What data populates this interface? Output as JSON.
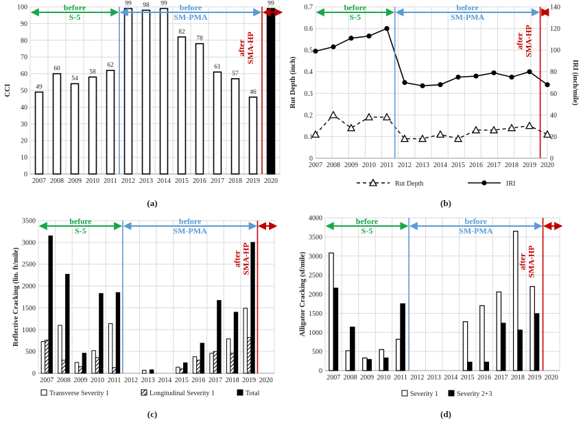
{
  "colors": {
    "green": "#1aa64a",
    "blue": "#5b9bd5",
    "red": "#c00000",
    "grid": "#d9d9d9",
    "black": "#000000"
  },
  "chart_data": [
    {
      "panel": "(a)",
      "type": "bar",
      "categories": [
        "2007",
        "2008",
        "2009",
        "2010",
        "2011",
        "2012",
        "2013",
        "2014",
        "2015",
        "2016",
        "2017",
        "2018",
        "2019",
        "2020"
      ],
      "values": [
        49,
        60,
        54,
        58,
        62,
        99,
        98,
        99,
        82,
        78,
        61,
        57,
        46,
        99
      ],
      "data_labels": [
        "49",
        "60",
        "54",
        "58",
        "62",
        "99",
        "98",
        "99",
        "82",
        "78",
        "61",
        "57",
        "46",
        "99"
      ],
      "fills": [
        "white",
        "white",
        "white",
        "white",
        "white",
        "white",
        "white",
        "white",
        "white",
        "white",
        "white",
        "white",
        "white",
        "black"
      ],
      "ylabel": "CCI",
      "ylim": [
        0,
        100
      ],
      "yticks": [
        "0",
        "10",
        "20",
        "30",
        "40",
        "50",
        "60",
        "70",
        "80",
        "90",
        "100"
      ],
      "annotations": [
        {
          "text1": "before",
          "text2": "S-5",
          "color": "green"
        },
        {
          "text1": "before",
          "text2": "SM-PMA",
          "color": "blue"
        },
        {
          "text1": "after",
          "text2": "SMA-HP",
          "color": "red"
        }
      ],
      "grid": true
    },
    {
      "panel": "(b)",
      "type": "line",
      "x": [
        "2007",
        "2008",
        "2009",
        "2010",
        "2011",
        "2012",
        "2013",
        "2014",
        "2015",
        "2016",
        "2017",
        "2018",
        "2019",
        "2020"
      ],
      "series": [
        {
          "name": "Rut Depth",
          "axis": "left",
          "style": "dashed-triangle",
          "values": [
            0.11,
            0.2,
            0.14,
            0.19,
            0.19,
            0.09,
            0.09,
            0.11,
            0.09,
            0.13,
            0.13,
            0.14,
            0.15,
            0.11
          ]
        },
        {
          "name": "IRI",
          "axis": "right",
          "style": "solid-circle",
          "values": [
            99,
            103,
            111,
            113,
            120,
            70,
            67,
            68,
            75,
            76,
            79,
            75,
            80,
            68
          ]
        }
      ],
      "ylabel": "Rut Depth (inch)",
      "ylim": [
        0,
        0.7
      ],
      "yticks": [
        "0",
        "0.1",
        "0.2",
        "0.3",
        "0.4",
        "0.5",
        "0.6",
        "0.7"
      ],
      "y2label": "IRI (inch/mile)",
      "y2lim": [
        0,
        140
      ],
      "y2ticks": [
        "0",
        "20",
        "40",
        "60",
        "80",
        "100",
        "120",
        "140"
      ],
      "legend": [
        "Rut Depth",
        "IRI"
      ],
      "legend_position": "bottom",
      "annotations": [
        {
          "text1": "before",
          "text2": "S-5",
          "color": "green"
        },
        {
          "text1": "before",
          "text2": "SM-PMA",
          "color": "blue"
        },
        {
          "text1": "after",
          "text2": "SMA-HP",
          "color": "red"
        }
      ],
      "grid": true
    },
    {
      "panel": "(c)",
      "type": "bar",
      "categories": [
        "2007",
        "2008",
        "2009",
        "2010",
        "2011",
        "2012",
        "2013",
        "2014",
        "2015",
        "2016",
        "2017",
        "2018",
        "2019",
        "2020"
      ],
      "series": [
        {
          "name": "Transverse Severity 1",
          "fill": "white",
          "values": [
            730,
            1100,
            250,
            520,
            1140,
            0,
            70,
            0,
            140,
            380,
            460,
            790,
            1490,
            0
          ]
        },
        {
          "name": "Longitudinal Severity 1",
          "fill": "hatch",
          "values": [
            760,
            300,
            150,
            360,
            130,
            0,
            0,
            0,
            100,
            300,
            500,
            460,
            820,
            0
          ]
        },
        {
          "name": "Total",
          "fill": "black",
          "values": [
            3150,
            2270,
            460,
            1830,
            1850,
            0,
            80,
            0,
            240,
            690,
            1670,
            1400,
            3000,
            0
          ]
        }
      ],
      "ylabel": "Reflective Cracking (lin. ft/mile)",
      "ylim": [
        0,
        3500
      ],
      "yticks": [
        "0",
        "500",
        "1000",
        "1500",
        "2000",
        "2500",
        "3000",
        "3500"
      ],
      "legend": [
        "Transverse Severity 1",
        "Longitudinal Severity 1",
        "Total"
      ],
      "legend_position": "bottom",
      "annotations": [
        {
          "text1": "before",
          "text2": "S-5",
          "color": "green"
        },
        {
          "text1": "before",
          "text2": "SM-PMA",
          "color": "blue"
        },
        {
          "text1": "after",
          "text2": "SMA-HP",
          "color": "red"
        }
      ],
      "grid": true
    },
    {
      "panel": "(d)",
      "type": "bar",
      "categories": [
        "2007",
        "2008",
        "2009",
        "2010",
        "2011",
        "2012",
        "2013",
        "2014",
        "2015",
        "2016",
        "2017",
        "2018",
        "2019",
        "2020"
      ],
      "series": [
        {
          "name": "Severity 1",
          "fill": "white",
          "values": [
            3080,
            520,
            330,
            550,
            820,
            0,
            0,
            0,
            1280,
            1700,
            2060,
            3650,
            2200,
            0
          ]
        },
        {
          "name": "Severity 2+3",
          "fill": "black",
          "values": [
            2160,
            1140,
            290,
            330,
            1750,
            0,
            0,
            0,
            220,
            220,
            1240,
            1060,
            1490,
            0
          ]
        }
      ],
      "ylabel": "Alligator Cracking (sf/mile)",
      "ylim": [
        0,
        4000
      ],
      "yticks": [
        "0",
        "500",
        "1000",
        "1500",
        "2000",
        "2500",
        "3000",
        "3500",
        "4000"
      ],
      "legend": [
        "Severity 1",
        "Severity 2+3"
      ],
      "legend_position": "bottom",
      "annotations": [
        {
          "text1": "before",
          "text2": "S-5",
          "color": "green"
        },
        {
          "text1": "before",
          "text2": "SM-PMA",
          "color": "blue"
        },
        {
          "text1": "after",
          "text2": "SMA-HP",
          "color": "red"
        }
      ],
      "grid": true
    }
  ]
}
